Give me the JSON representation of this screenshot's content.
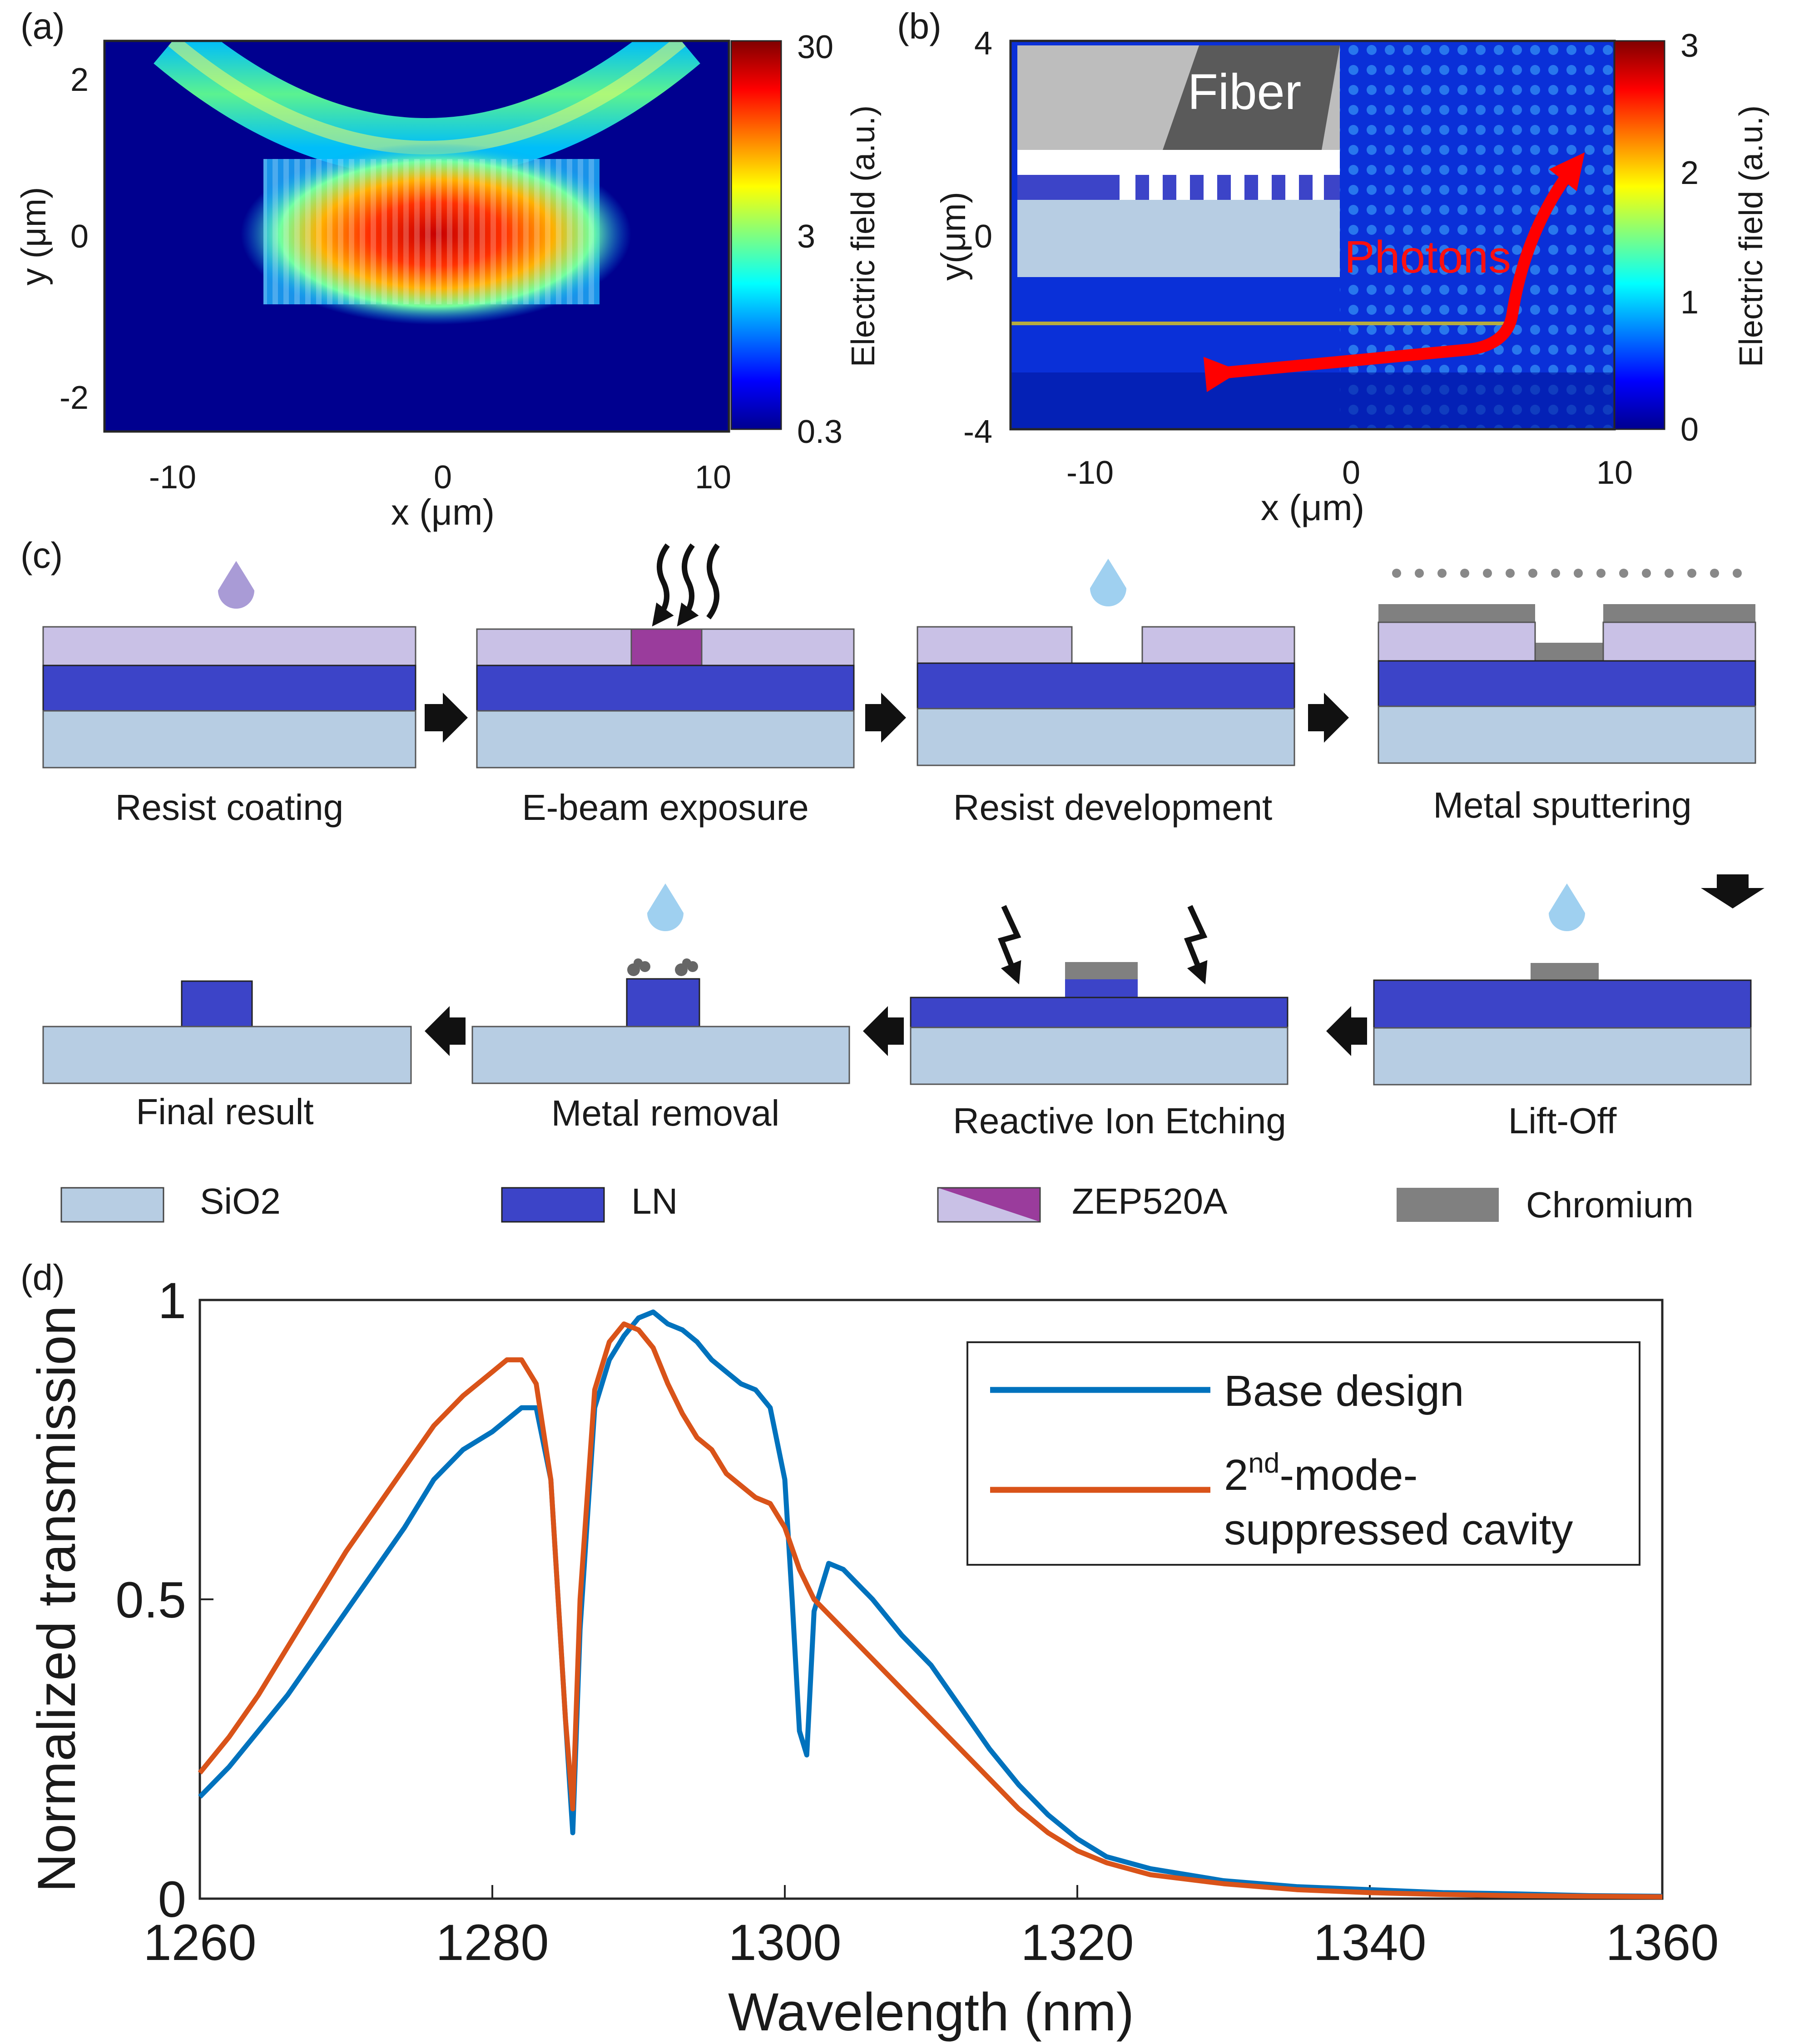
{
  "panels": {
    "a": {
      "letter": "(a)",
      "xlabel": "x (μm)",
      "ylabel": "y (μm)",
      "xticks": [
        "-10",
        "0",
        "10"
      ],
      "yticks": [
        "2",
        "0",
        "-2"
      ],
      "colorbar_label": "Electric field (a.u.)",
      "colorbar_ticks": [
        "30",
        "3",
        "0.3"
      ]
    },
    "b": {
      "letter": "(b)",
      "xlabel": "x (μm)",
      "ylabel": "y(μm)",
      "xticks": [
        "-10",
        "0",
        "10"
      ],
      "yticks": [
        "4",
        "0",
        "-4"
      ],
      "colorbar_label": "Electric field (a.u.)",
      "colorbar_ticks": [
        "3",
        "2",
        "1",
        "0"
      ],
      "inset_label": "Fiber",
      "arrow_label": "Photons"
    },
    "c": {
      "letter": "(c)",
      "steps": [
        "Resist coating",
        "E-beam exposure",
        "Resist development",
        "Metal sputtering",
        "Lift-Off",
        "Reactive Ion Etching",
        "Metal removal",
        "Final result"
      ],
      "legend": [
        "SiO2",
        "LN",
        "ZEP520A",
        "Chromium"
      ]
    },
    "d": {
      "letter": "(d)"
    }
  },
  "colors": {
    "sio2": "#b7cde3",
    "ln": "#3c44c8",
    "resist": "#c9c1e6",
    "resist_exposed": "#9a3c9c",
    "chromium": "#808080",
    "base_design": "#0072bd",
    "suppressed": "#d95319"
  },
  "chart_data": {
    "type": "line",
    "title": "",
    "xlabel": "Wavelength (nm)",
    "ylabel": "Normalized transmission",
    "xlim": [
      1260,
      1360
    ],
    "ylim": [
      0,
      1
    ],
    "xticks": [
      "1260",
      "1280",
      "1300",
      "1320",
      "1340",
      "1360"
    ],
    "yticks": [
      "1",
      "0.5",
      "0"
    ],
    "legend_position": "top-right",
    "series": [
      {
        "name": "Base design",
        "x": [
          1260,
          1262,
          1264,
          1266,
          1268,
          1270,
          1272,
          1274,
          1276,
          1278,
          1280,
          1281,
          1282,
          1283,
          1284,
          1285,
          1285.5,
          1286,
          1287,
          1288,
          1289,
          1290,
          1291,
          1292,
          1293,
          1294,
          1295,
          1296,
          1297,
          1298,
          1299,
          1300,
          1300.5,
          1301,
          1301.5,
          1302,
          1303,
          1304,
          1306,
          1308,
          1310,
          1312,
          1314,
          1316,
          1318,
          1320,
          1322,
          1325,
          1330,
          1335,
          1340,
          1345,
          1350,
          1355,
          1360
        ],
        "y": [
          0.17,
          0.22,
          0.28,
          0.34,
          0.41,
          0.48,
          0.55,
          0.62,
          0.7,
          0.75,
          0.78,
          0.8,
          0.82,
          0.82,
          0.7,
          0.3,
          0.11,
          0.45,
          0.82,
          0.9,
          0.94,
          0.97,
          0.98,
          0.96,
          0.95,
          0.93,
          0.9,
          0.88,
          0.86,
          0.85,
          0.82,
          0.7,
          0.5,
          0.28,
          0.24,
          0.48,
          0.56,
          0.55,
          0.5,
          0.44,
          0.39,
          0.32,
          0.25,
          0.19,
          0.14,
          0.1,
          0.07,
          0.05,
          0.03,
          0.02,
          0.015,
          0.01,
          0.008,
          0.005,
          0.004
        ]
      },
      {
        "name": "2nd-mode-suppressed cavity",
        "x": [
          1260,
          1262,
          1264,
          1266,
          1268,
          1270,
          1272,
          1274,
          1276,
          1278,
          1280,
          1281,
          1282,
          1283,
          1284,
          1285,
          1285.5,
          1286,
          1287,
          1288,
          1289,
          1290,
          1291,
          1292,
          1293,
          1294,
          1295,
          1296,
          1297,
          1298,
          1299,
          1300,
          1301,
          1302,
          1304,
          1306,
          1308,
          1310,
          1312,
          1314,
          1316,
          1318,
          1320,
          1322,
          1325,
          1330,
          1335,
          1340,
          1345,
          1350,
          1355,
          1360
        ],
        "y": [
          0.21,
          0.27,
          0.34,
          0.42,
          0.5,
          0.58,
          0.65,
          0.72,
          0.79,
          0.84,
          0.88,
          0.9,
          0.9,
          0.86,
          0.7,
          0.3,
          0.15,
          0.5,
          0.85,
          0.93,
          0.96,
          0.95,
          0.92,
          0.86,
          0.81,
          0.77,
          0.75,
          0.71,
          0.69,
          0.67,
          0.66,
          0.62,
          0.55,
          0.5,
          0.45,
          0.4,
          0.35,
          0.3,
          0.25,
          0.2,
          0.15,
          0.11,
          0.08,
          0.06,
          0.04,
          0.025,
          0.015,
          0.01,
          0.007,
          0.005,
          0.004,
          0.003
        ]
      }
    ],
    "legend": {
      "base_label": "Base design",
      "sup_pre": "2",
      "sup_sup": "nd",
      "sup_post": "-mode-",
      "sup_line2": "suppressed cavity"
    }
  }
}
